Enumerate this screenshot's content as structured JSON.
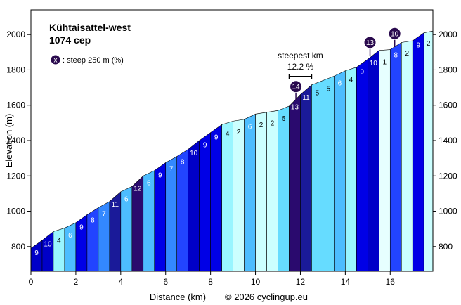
{
  "chart_data": {
    "type": "area",
    "title": "Kühtaisattel-west",
    "subtitle": "1074 сер",
    "xlabel": "Distance (km)",
    "ylabel": "Elevation (m)",
    "credit": "© 2026 cyclingup.eu",
    "xlim": [
      0,
      17.9
    ],
    "ylim": [
      660,
      2140
    ],
    "xticks": [
      0,
      2,
      4,
      6,
      8,
      10,
      12,
      14,
      16
    ],
    "yticks": [
      800,
      1000,
      1200,
      1400,
      1600,
      1800,
      2000
    ],
    "legend": {
      "marker": "x",
      "text": ": steep 250 m (%)",
      "position": "top-left"
    },
    "annotation": {
      "text": "steepest km",
      "value": "12.2 %",
      "from_km": 11.5,
      "to_km": 12.5
    },
    "segments": [
      {
        "from": 0.0,
        "to": 0.5,
        "gradient": 9,
        "elev_start": 790,
        "elev_end": 835,
        "color": "#0000c8"
      },
      {
        "from": 0.5,
        "to": 1.0,
        "gradient": 10,
        "elev_start": 835,
        "elev_end": 885,
        "color": "#0000c8"
      },
      {
        "from": 1.0,
        "to": 1.5,
        "gradient": 4,
        "elev_start": 885,
        "elev_end": 905,
        "color": "#99f5ff"
      },
      {
        "from": 1.5,
        "to": 2.0,
        "gradient": 6,
        "elev_start": 905,
        "elev_end": 935,
        "color": "#4dbdff"
      },
      {
        "from": 2.0,
        "to": 2.5,
        "gradient": 9,
        "elev_start": 935,
        "elev_end": 980,
        "color": "#0000e6"
      },
      {
        "from": 2.5,
        "to": 3.0,
        "gradient": 8,
        "elev_start": 980,
        "elev_end": 1020,
        "color": "#2244ff"
      },
      {
        "from": 3.0,
        "to": 3.5,
        "gradient": 7,
        "elev_start": 1020,
        "elev_end": 1055,
        "color": "#3388ff"
      },
      {
        "from": 3.5,
        "to": 4.0,
        "gradient": 11,
        "elev_start": 1055,
        "elev_end": 1110,
        "color": "#1a1a99"
      },
      {
        "from": 4.0,
        "to": 4.5,
        "gradient": 6,
        "elev_start": 1110,
        "elev_end": 1140,
        "color": "#4dbdff"
      },
      {
        "from": 4.5,
        "to": 5.0,
        "gradient": 12,
        "elev_start": 1140,
        "elev_end": 1200,
        "color": "#2a0a6e"
      },
      {
        "from": 5.0,
        "to": 5.5,
        "gradient": 6,
        "elev_start": 1200,
        "elev_end": 1230,
        "color": "#4dbdff"
      },
      {
        "from": 5.5,
        "to": 6.0,
        "gradient": 9,
        "elev_start": 1230,
        "elev_end": 1275,
        "color": "#0000e6"
      },
      {
        "from": 6.0,
        "to": 6.5,
        "gradient": 7,
        "elev_start": 1275,
        "elev_end": 1310,
        "color": "#3388ff"
      },
      {
        "from": 6.5,
        "to": 7.0,
        "gradient": 8,
        "elev_start": 1310,
        "elev_end": 1350,
        "color": "#2244ff"
      },
      {
        "from": 7.0,
        "to": 7.5,
        "gradient": 10,
        "elev_start": 1350,
        "elev_end": 1400,
        "color": "#0000c8"
      },
      {
        "from": 7.5,
        "to": 8.0,
        "gradient": 9,
        "elev_start": 1400,
        "elev_end": 1445,
        "color": "#0000e6"
      },
      {
        "from": 8.0,
        "to": 8.5,
        "gradient": 9,
        "elev_start": 1445,
        "elev_end": 1490,
        "color": "#0000e6"
      },
      {
        "from": 8.5,
        "to": 9.0,
        "gradient": 4,
        "elev_start": 1490,
        "elev_end": 1510,
        "color": "#99f5ff"
      },
      {
        "from": 9.0,
        "to": 9.5,
        "gradient": 2,
        "elev_start": 1510,
        "elev_end": 1520,
        "color": "#ccffff"
      },
      {
        "from": 9.5,
        "to": 10.0,
        "gradient": 6,
        "elev_start": 1520,
        "elev_end": 1550,
        "color": "#4dbdff"
      },
      {
        "from": 10.0,
        "to": 10.5,
        "gradient": 2,
        "elev_start": 1550,
        "elev_end": 1560,
        "color": "#ccffff"
      },
      {
        "from": 10.5,
        "to": 11.0,
        "gradient": 2,
        "elev_start": 1560,
        "elev_end": 1570,
        "color": "#ccffff"
      },
      {
        "from": 11.0,
        "to": 11.5,
        "gradient": 5,
        "elev_start": 1570,
        "elev_end": 1595,
        "color": "#66dcff"
      },
      {
        "from": 11.5,
        "to": 12.0,
        "gradient": 13,
        "elev_start": 1595,
        "elev_end": 1660,
        "color": "#2a0a6e"
      },
      {
        "from": 12.0,
        "to": 12.5,
        "gradient": 11,
        "elev_start": 1660,
        "elev_end": 1715,
        "color": "#1a1a99"
      },
      {
        "from": 12.5,
        "to": 13.0,
        "gradient": 5,
        "elev_start": 1715,
        "elev_end": 1740,
        "color": "#66dcff"
      },
      {
        "from": 13.0,
        "to": 13.5,
        "gradient": 5,
        "elev_start": 1740,
        "elev_end": 1765,
        "color": "#66dcff"
      },
      {
        "from": 13.5,
        "to": 14.0,
        "gradient": 6,
        "elev_start": 1765,
        "elev_end": 1795,
        "color": "#4dbdff"
      },
      {
        "from": 14.0,
        "to": 14.5,
        "gradient": 4,
        "elev_start": 1795,
        "elev_end": 1815,
        "color": "#99f5ff"
      },
      {
        "from": 14.5,
        "to": 15.0,
        "gradient": 9,
        "elev_start": 1815,
        "elev_end": 1860,
        "color": "#0000e6"
      },
      {
        "from": 15.0,
        "to": 15.5,
        "gradient": 10,
        "elev_start": 1860,
        "elev_end": 1910,
        "color": "#0000c8"
      },
      {
        "from": 15.5,
        "to": 16.0,
        "gradient": 1,
        "elev_start": 1910,
        "elev_end": 1915,
        "color": "#e6ffff"
      },
      {
        "from": 16.0,
        "to": 16.5,
        "gradient": 8,
        "elev_start": 1915,
        "elev_end": 1955,
        "color": "#2244ff"
      },
      {
        "from": 16.5,
        "to": 17.0,
        "gradient": 2,
        "elev_start": 1955,
        "elev_end": 1965,
        "color": "#ccffff"
      },
      {
        "from": 17.0,
        "to": 17.5,
        "gradient": 9,
        "elev_start": 1965,
        "elev_end": 2010,
        "color": "#0000e6"
      },
      {
        "from": 17.5,
        "to": 17.9,
        "gradient": 2,
        "elev_start": 2010,
        "elev_end": 2020,
        "color": "#ccffff"
      }
    ],
    "steep_markers": [
      {
        "label": "14",
        "km": 11.8,
        "elev": 1630
      },
      {
        "label": "13",
        "km": 15.1,
        "elev": 1880
      },
      {
        "label": "10",
        "km": 16.2,
        "elev": 1930
      }
    ],
    "colors": {
      "marker_fill": "#2a0a4e",
      "marker_stroke": "#ffffff"
    }
  }
}
